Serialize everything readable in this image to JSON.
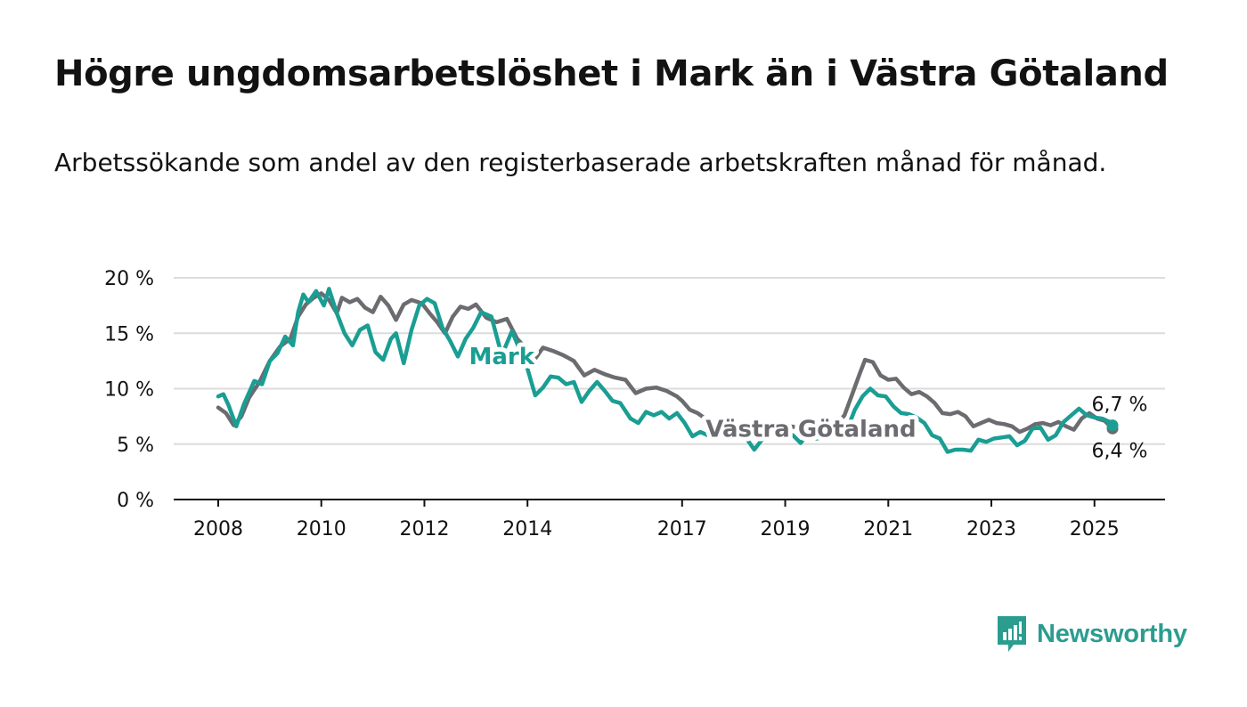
{
  "title": "Högre ungdomsarbetslöshet i Mark än i Västra Götaland",
  "subtitle": "Arbetssökande som andel av den registerbaserade arbetskraften månad för månad.",
  "brand": {
    "name": "Newsworthy",
    "icon": "newsworthy-bar-chart-icon",
    "color": "#2a9d8f"
  },
  "colors": {
    "mark": "#1a9e93",
    "vg": "#6b6b70",
    "grid": "#dcdcdc",
    "axis": "#121212"
  },
  "chart_data": {
    "type": "line",
    "title": "Högre ungdomsarbetslöshet i Mark än i Västra Götaland",
    "xlabel": "",
    "ylabel": "",
    "xlim": [
      2008,
      2025.5
    ],
    "ylim": [
      0,
      20
    ],
    "grid": true,
    "y_ticks": [
      {
        "value": 0,
        "label": "0 %"
      },
      {
        "value": 5,
        "label": "5 %"
      },
      {
        "value": 10,
        "label": "10 %"
      },
      {
        "value": 15,
        "label": "15 %"
      },
      {
        "value": 20,
        "label": "20 %"
      }
    ],
    "x_ticks": [
      {
        "value": 2008,
        "label": "2008"
      },
      {
        "value": 2010,
        "label": "2010"
      },
      {
        "value": 2012,
        "label": "2012"
      },
      {
        "value": 2014,
        "label": "2014"
      },
      {
        "value": 2017,
        "label": "2017"
      },
      {
        "value": 2019,
        "label": "2019"
      },
      {
        "value": 2021,
        "label": "2021"
      },
      {
        "value": 2023,
        "label": "2023"
      },
      {
        "value": 2025,
        "label": "2025"
      }
    ],
    "series": [
      {
        "name": "Västra Götaland",
        "color": "#6b6b70",
        "label_at": 2019.5,
        "end_label": "6,4 %",
        "points": [
          [
            2008.0,
            8.3
          ],
          [
            2008.15,
            7.8
          ],
          [
            2008.3,
            6.7
          ],
          [
            2008.45,
            7.5
          ],
          [
            2008.6,
            9.2
          ],
          [
            2008.8,
            10.6
          ],
          [
            2009.0,
            12.5
          ],
          [
            2009.2,
            13.8
          ],
          [
            2009.4,
            14.5
          ],
          [
            2009.55,
            16.5
          ],
          [
            2009.7,
            17.6
          ],
          [
            2009.85,
            18.2
          ],
          [
            2010.0,
            18.6
          ],
          [
            2010.15,
            18.0
          ],
          [
            2010.3,
            16.8
          ],
          [
            2010.4,
            18.2
          ],
          [
            2010.55,
            17.8
          ],
          [
            2010.7,
            18.1
          ],
          [
            2010.85,
            17.3
          ],
          [
            2011.0,
            16.9
          ],
          [
            2011.15,
            18.3
          ],
          [
            2011.3,
            17.5
          ],
          [
            2011.45,
            16.2
          ],
          [
            2011.6,
            17.6
          ],
          [
            2011.75,
            18.0
          ],
          [
            2011.95,
            17.7
          ],
          [
            2012.1,
            16.8
          ],
          [
            2012.25,
            16.0
          ],
          [
            2012.4,
            15.0
          ],
          [
            2012.55,
            16.5
          ],
          [
            2012.7,
            17.4
          ],
          [
            2012.85,
            17.2
          ],
          [
            2013.0,
            17.6
          ],
          [
            2013.2,
            16.4
          ],
          [
            2013.4,
            16.0
          ],
          [
            2013.6,
            16.3
          ],
          [
            2013.8,
            14.5
          ],
          [
            2014.0,
            13.5
          ],
          [
            2014.15,
            12.7
          ],
          [
            2014.3,
            13.7
          ],
          [
            2014.5,
            13.4
          ],
          [
            2014.7,
            13.0
          ],
          [
            2014.9,
            12.5
          ],
          [
            2015.1,
            11.2
          ],
          [
            2015.3,
            11.7
          ],
          [
            2015.5,
            11.3
          ],
          [
            2015.7,
            11.0
          ],
          [
            2015.9,
            10.8
          ],
          [
            2016.1,
            9.6
          ],
          [
            2016.3,
            10.0
          ],
          [
            2016.5,
            10.1
          ],
          [
            2016.7,
            9.8
          ],
          [
            2016.9,
            9.3
          ],
          [
            2017.0,
            8.9
          ],
          [
            2017.15,
            8.1
          ],
          [
            2017.3,
            7.8
          ],
          [
            2017.45,
            7.3
          ],
          [
            2017.6,
            7.0
          ],
          [
            2017.75,
            6.7
          ],
          [
            2017.9,
            6.9
          ],
          [
            2018.05,
            6.8
          ],
          [
            2018.2,
            6.6
          ],
          [
            2018.35,
            6.6
          ],
          [
            2018.5,
            6.8
          ],
          [
            2018.65,
            6.5
          ],
          [
            2018.8,
            6.7
          ],
          [
            2018.95,
            6.6
          ],
          [
            2019.1,
            6.6
          ],
          [
            2019.25,
            6.5
          ],
          [
            2019.4,
            6.4
          ],
          [
            2019.55,
            6.5
          ],
          [
            2019.7,
            6.6
          ],
          [
            2019.85,
            6.7
          ],
          [
            2020.0,
            6.8
          ],
          [
            2020.15,
            7.6
          ],
          [
            2020.3,
            9.5
          ],
          [
            2020.45,
            11.4
          ],
          [
            2020.55,
            12.6
          ],
          [
            2020.7,
            12.4
          ],
          [
            2020.85,
            11.2
          ],
          [
            2021.0,
            10.8
          ],
          [
            2021.15,
            10.9
          ],
          [
            2021.3,
            10.1
          ],
          [
            2021.45,
            9.5
          ],
          [
            2021.6,
            9.7
          ],
          [
            2021.75,
            9.3
          ],
          [
            2021.9,
            8.7
          ],
          [
            2022.05,
            7.8
          ],
          [
            2022.2,
            7.7
          ],
          [
            2022.35,
            7.9
          ],
          [
            2022.5,
            7.5
          ],
          [
            2022.65,
            6.6
          ],
          [
            2022.8,
            6.9
          ],
          [
            2022.95,
            7.2
          ],
          [
            2023.1,
            6.9
          ],
          [
            2023.25,
            6.8
          ],
          [
            2023.4,
            6.6
          ],
          [
            2023.55,
            6.1
          ],
          [
            2023.7,
            6.4
          ],
          [
            2023.85,
            6.8
          ],
          [
            2024.0,
            6.9
          ],
          [
            2024.15,
            6.7
          ],
          [
            2024.3,
            7.0
          ],
          [
            2024.45,
            6.6
          ],
          [
            2024.6,
            6.3
          ],
          [
            2024.75,
            7.3
          ],
          [
            2024.9,
            7.8
          ],
          [
            2025.05,
            7.3
          ],
          [
            2025.2,
            7.1
          ],
          [
            2025.35,
            6.4
          ]
        ]
      },
      {
        "name": "Mark",
        "color": "#1a9e93",
        "label_at": 2013.5,
        "end_label": "6,7 %",
        "points": [
          [
            2008.0,
            9.3
          ],
          [
            2008.1,
            9.5
          ],
          [
            2008.2,
            8.5
          ],
          [
            2008.35,
            6.6
          ],
          [
            2008.5,
            8.6
          ],
          [
            2008.7,
            10.7
          ],
          [
            2008.85,
            10.4
          ],
          [
            2009.0,
            12.5
          ],
          [
            2009.15,
            13.2
          ],
          [
            2009.3,
            14.7
          ],
          [
            2009.45,
            13.9
          ],
          [
            2009.55,
            16.9
          ],
          [
            2009.65,
            18.5
          ],
          [
            2009.75,
            17.8
          ],
          [
            2009.9,
            18.8
          ],
          [
            2010.05,
            17.5
          ],
          [
            2010.15,
            19.0
          ],
          [
            2010.3,
            16.8
          ],
          [
            2010.45,
            15.0
          ],
          [
            2010.6,
            13.9
          ],
          [
            2010.75,
            15.3
          ],
          [
            2010.9,
            15.7
          ],
          [
            2011.05,
            13.3
          ],
          [
            2011.2,
            12.6
          ],
          [
            2011.35,
            14.5
          ],
          [
            2011.45,
            15.0
          ],
          [
            2011.6,
            12.3
          ],
          [
            2011.75,
            15.3
          ],
          [
            2011.9,
            17.5
          ],
          [
            2012.05,
            18.1
          ],
          [
            2012.2,
            17.7
          ],
          [
            2012.35,
            15.5
          ],
          [
            2012.5,
            14.3
          ],
          [
            2012.65,
            12.9
          ],
          [
            2012.8,
            14.5
          ],
          [
            2012.95,
            15.5
          ],
          [
            2013.1,
            16.9
          ],
          [
            2013.3,
            16.5
          ],
          [
            2013.5,
            13.0
          ],
          [
            2013.7,
            15.2
          ],
          [
            2013.85,
            13.5
          ],
          [
            2014.0,
            11.8
          ],
          [
            2014.15,
            9.4
          ],
          [
            2014.3,
            10.1
          ],
          [
            2014.45,
            11.1
          ],
          [
            2014.6,
            11.0
          ],
          [
            2014.75,
            10.4
          ],
          [
            2014.9,
            10.6
          ],
          [
            2015.05,
            8.8
          ],
          [
            2015.2,
            9.8
          ],
          [
            2015.35,
            10.6
          ],
          [
            2015.5,
            9.8
          ],
          [
            2015.65,
            8.9
          ],
          [
            2015.8,
            8.7
          ],
          [
            2016.0,
            7.3
          ],
          [
            2016.15,
            6.9
          ],
          [
            2016.3,
            7.9
          ],
          [
            2016.45,
            7.6
          ],
          [
            2016.6,
            7.9
          ],
          [
            2016.75,
            7.3
          ],
          [
            2016.9,
            7.8
          ],
          [
            2017.05,
            6.9
          ],
          [
            2017.2,
            5.7
          ],
          [
            2017.35,
            6.1
          ],
          [
            2017.5,
            5.8
          ],
          [
            2017.65,
            6.2
          ],
          [
            2017.8,
            5.9
          ],
          [
            2017.95,
            6.0
          ],
          [
            2018.1,
            6.1
          ],
          [
            2018.25,
            5.5
          ],
          [
            2018.4,
            4.5
          ],
          [
            2018.55,
            5.4
          ],
          [
            2018.7,
            5.8
          ],
          [
            2018.85,
            5.8
          ],
          [
            2019.0,
            6.0
          ],
          [
            2019.15,
            5.8
          ],
          [
            2019.3,
            5.1
          ],
          [
            2019.45,
            6.0
          ],
          [
            2019.6,
            5.5
          ],
          [
            2019.75,
            5.6
          ],
          [
            2019.9,
            5.9
          ],
          [
            2020.05,
            5.8
          ],
          [
            2020.2,
            6.3
          ],
          [
            2020.35,
            8.1
          ],
          [
            2020.5,
            9.3
          ],
          [
            2020.65,
            10.0
          ],
          [
            2020.8,
            9.4
          ],
          [
            2020.95,
            9.3
          ],
          [
            2021.1,
            8.4
          ],
          [
            2021.25,
            7.8
          ],
          [
            2021.4,
            7.7
          ],
          [
            2021.55,
            7.4
          ],
          [
            2021.7,
            6.9
          ],
          [
            2021.85,
            5.8
          ],
          [
            2022.0,
            5.5
          ],
          [
            2022.15,
            4.3
          ],
          [
            2022.3,
            4.5
          ],
          [
            2022.45,
            4.5
          ],
          [
            2022.6,
            4.4
          ],
          [
            2022.75,
            5.4
          ],
          [
            2022.9,
            5.2
          ],
          [
            2023.05,
            5.5
          ],
          [
            2023.2,
            5.6
          ],
          [
            2023.35,
            5.7
          ],
          [
            2023.5,
            4.9
          ],
          [
            2023.65,
            5.3
          ],
          [
            2023.8,
            6.4
          ],
          [
            2023.95,
            6.5
          ],
          [
            2024.1,
            5.4
          ],
          [
            2024.25,
            5.8
          ],
          [
            2024.4,
            7.0
          ],
          [
            2024.55,
            7.6
          ],
          [
            2024.7,
            8.2
          ],
          [
            2024.85,
            7.6
          ],
          [
            2025.0,
            7.4
          ],
          [
            2025.15,
            7.3
          ],
          [
            2025.3,
            7.0
          ],
          [
            2025.35,
            6.7
          ]
        ]
      }
    ]
  }
}
